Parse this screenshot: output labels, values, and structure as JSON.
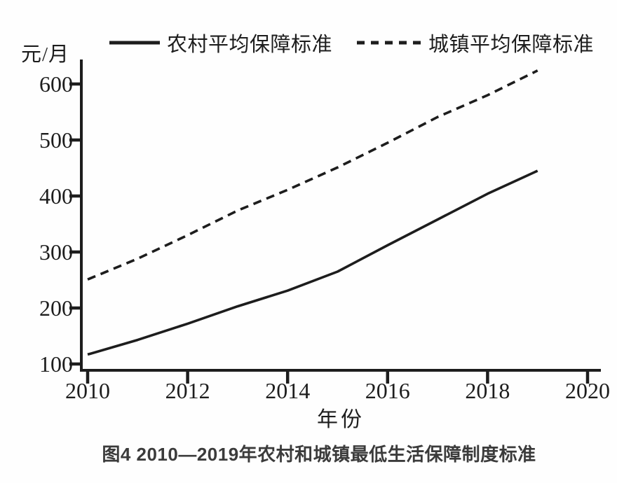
{
  "colors": {
    "line": "#1d1d1d",
    "axis": "#1d1d1d",
    "caption_text": "#3b3b3b",
    "background": "#fefefe"
  },
  "chart_data": {
    "type": "line",
    "title": "",
    "caption": "图4 2010—2019年农村和城镇最低生活保障制度标准",
    "unit_label": "元/月",
    "xlabel": "年份",
    "x": [
      2010,
      2011,
      2012,
      2013,
      2014,
      2015,
      2016,
      2017,
      2018,
      2019
    ],
    "series": [
      {
        "name": "农村平均保障标准",
        "line_style": "solid",
        "values": [
          117,
          143,
          172,
          203,
          231,
          265,
          312,
          358,
          404,
          445
        ]
      },
      {
        "name": "城镇平均保障标准",
        "line_style": "dashed",
        "values": [
          251,
          288,
          330,
          374,
          411,
          451,
          495,
          541,
          580,
          624
        ]
      }
    ],
    "x_ticks": [
      "2010",
      "2012",
      "2014",
      "2016",
      "2018",
      "2020"
    ],
    "x_tick_years": [
      2010,
      2012,
      2014,
      2016,
      2018,
      2020
    ],
    "y_ticks": [
      "100",
      "200",
      "300",
      "400",
      "500",
      "600"
    ],
    "y_tick_values": [
      100,
      200,
      300,
      400,
      500,
      600
    ],
    "xlim": [
      2010,
      2020.3
    ],
    "ylim": [
      86,
      644
    ],
    "grid": false,
    "legend_position": "top"
  }
}
